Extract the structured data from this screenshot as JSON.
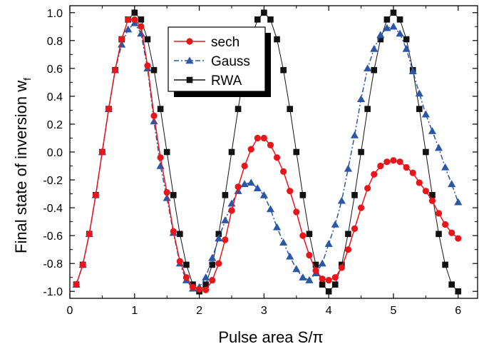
{
  "chart_data": {
    "type": "line",
    "xlabel": "Pulse area S/π",
    "ylabel_main": "Final state of inversion w",
    "ylabel_sub": "f",
    "xlim": [
      0,
      6.3
    ],
    "ylim": [
      -1.05,
      1.05
    ],
    "x_ticks": [
      0,
      1,
      2,
      3,
      4,
      5,
      6
    ],
    "x_tick_labels": [
      "0",
      "1",
      "2",
      "3",
      "4",
      "5",
      "6"
    ],
    "y_ticks": [
      -1.0,
      -0.8,
      -0.6,
      -0.4,
      -0.2,
      0.0,
      0.2,
      0.4,
      0.6,
      0.8,
      1.0
    ],
    "y_tick_labels": [
      "-1.0",
      "-0.8",
      "-0.6",
      "-0.4",
      "-0.2",
      "0.0",
      "0.2",
      "0.4",
      "0.6",
      "0.8",
      "1.0"
    ],
    "grid": false,
    "legend_position": "top-center",
    "series": [
      {
        "name": "sech",
        "color": "#e8161b",
        "marker": "circle",
        "line_style": "solid",
        "x": [
          0.1,
          0.2,
          0.3,
          0.4,
          0.5,
          0.6,
          0.7,
          0.8,
          0.9,
          1.0,
          1.1,
          1.2,
          1.3,
          1.4,
          1.5,
          1.6,
          1.7,
          1.8,
          1.9,
          2.0,
          2.1,
          2.2,
          2.3,
          2.4,
          2.5,
          2.6,
          2.7,
          2.8,
          2.9,
          3.0,
          3.1,
          3.2,
          3.3,
          3.4,
          3.5,
          3.6,
          3.7,
          3.8,
          3.9,
          4.0,
          4.1,
          4.2,
          4.3,
          4.4,
          4.5,
          4.6,
          4.7,
          4.8,
          4.9,
          5.0,
          5.1,
          5.2,
          5.3,
          5.4,
          5.5,
          5.6,
          5.7,
          5.8,
          5.9,
          6.0
        ],
        "y": [
          -0.951,
          -0.809,
          -0.588,
          -0.309,
          0.0,
          0.309,
          0.588,
          0.809,
          0.951,
          0.95,
          0.9,
          0.62,
          0.26,
          -0.04,
          -0.29,
          -0.57,
          -0.785,
          -0.9,
          -0.97,
          -0.985,
          -0.99,
          -0.92,
          -0.8,
          -0.63,
          -0.42,
          -0.25,
          -0.1,
          0.02,
          0.1,
          0.1,
          0.05,
          -0.04,
          -0.14,
          -0.28,
          -0.43,
          -0.6,
          -0.74,
          -0.85,
          -0.91,
          -0.92,
          -0.9,
          -0.83,
          -0.7,
          -0.55,
          -0.4,
          -0.26,
          -0.16,
          -0.1,
          -0.07,
          -0.06,
          -0.07,
          -0.11,
          -0.15,
          -0.22,
          -0.28,
          -0.35,
          -0.44,
          -0.52,
          -0.58,
          -0.62
        ]
      },
      {
        "name": "Gauss",
        "color": "#2a57a6",
        "marker": "triangle",
        "line_style": "dashdot",
        "x": [
          0.1,
          0.2,
          0.3,
          0.4,
          0.5,
          0.6,
          0.7,
          0.8,
          0.9,
          1.0,
          1.1,
          1.2,
          1.3,
          1.4,
          1.5,
          1.6,
          1.7,
          1.8,
          1.9,
          2.0,
          2.1,
          2.2,
          2.3,
          2.4,
          2.5,
          2.6,
          2.7,
          2.8,
          2.9,
          3.0,
          3.1,
          3.2,
          3.3,
          3.4,
          3.5,
          3.6,
          3.7,
          3.8,
          3.9,
          4.0,
          4.1,
          4.2,
          4.3,
          4.4,
          4.5,
          4.6,
          4.7,
          4.8,
          4.9,
          5.0,
          5.1,
          5.2,
          5.3,
          5.4,
          5.5,
          5.6,
          5.7,
          5.8,
          5.9,
          6.0
        ],
        "y": [
          -0.951,
          -0.809,
          -0.588,
          -0.309,
          0.0,
          0.309,
          0.588,
          0.771,
          0.88,
          0.925,
          0.85,
          0.6,
          0.22,
          -0.1,
          -0.33,
          -0.58,
          -0.8,
          -0.92,
          -0.98,
          -0.97,
          -0.9,
          -0.76,
          -0.62,
          -0.49,
          -0.37,
          -0.28,
          -0.23,
          -0.22,
          -0.26,
          -0.31,
          -0.41,
          -0.54,
          -0.65,
          -0.75,
          -0.84,
          -0.9,
          -0.92,
          -0.87,
          -0.8,
          -0.66,
          -0.52,
          -0.35,
          -0.12,
          0.12,
          0.38,
          0.6,
          0.74,
          0.84,
          0.89,
          0.9,
          0.85,
          0.74,
          0.58,
          0.42,
          0.27,
          0.15,
          0.03,
          -0.11,
          -0.23,
          -0.36
        ]
      },
      {
        "name": "RWA",
        "color": "#111111",
        "marker": "square",
        "line_style": "solid",
        "x": [
          0.1,
          0.2,
          0.3,
          0.4,
          0.5,
          0.6,
          0.7,
          0.8,
          0.9,
          1.0,
          1.1,
          1.2,
          1.3,
          1.4,
          1.5,
          1.6,
          1.7,
          1.8,
          1.9,
          2.0,
          2.1,
          2.2,
          2.3,
          2.4,
          2.5,
          2.6,
          2.7,
          2.8,
          2.9,
          3.0,
          3.1,
          3.2,
          3.3,
          3.4,
          3.5,
          3.6,
          3.7,
          3.8,
          3.9,
          4.0,
          4.1,
          4.2,
          4.3,
          4.4,
          4.5,
          4.6,
          4.7,
          4.8,
          4.9,
          5.0,
          5.1,
          5.2,
          5.3,
          5.4,
          5.5,
          5.6,
          5.7,
          5.8,
          5.9,
          6.0
        ],
        "y": [
          -0.951,
          -0.809,
          -0.588,
          -0.309,
          0.0,
          0.309,
          0.588,
          0.809,
          0.951,
          1.0,
          0.951,
          0.809,
          0.588,
          0.309,
          0.0,
          -0.309,
          -0.588,
          -0.809,
          -0.951,
          -1.0,
          -0.951,
          -0.809,
          -0.588,
          -0.309,
          0.0,
          0.309,
          0.588,
          0.809,
          0.951,
          1.0,
          0.951,
          0.809,
          0.588,
          0.309,
          0.0,
          -0.309,
          -0.588,
          -0.809,
          -0.951,
          -1.0,
          -0.951,
          -0.809,
          -0.588,
          -0.309,
          0.0,
          0.309,
          0.588,
          0.809,
          0.951,
          1.0,
          0.951,
          0.809,
          0.588,
          0.309,
          0.0,
          -0.309,
          -0.588,
          -0.809,
          -0.951,
          -1.0
        ]
      }
    ]
  }
}
